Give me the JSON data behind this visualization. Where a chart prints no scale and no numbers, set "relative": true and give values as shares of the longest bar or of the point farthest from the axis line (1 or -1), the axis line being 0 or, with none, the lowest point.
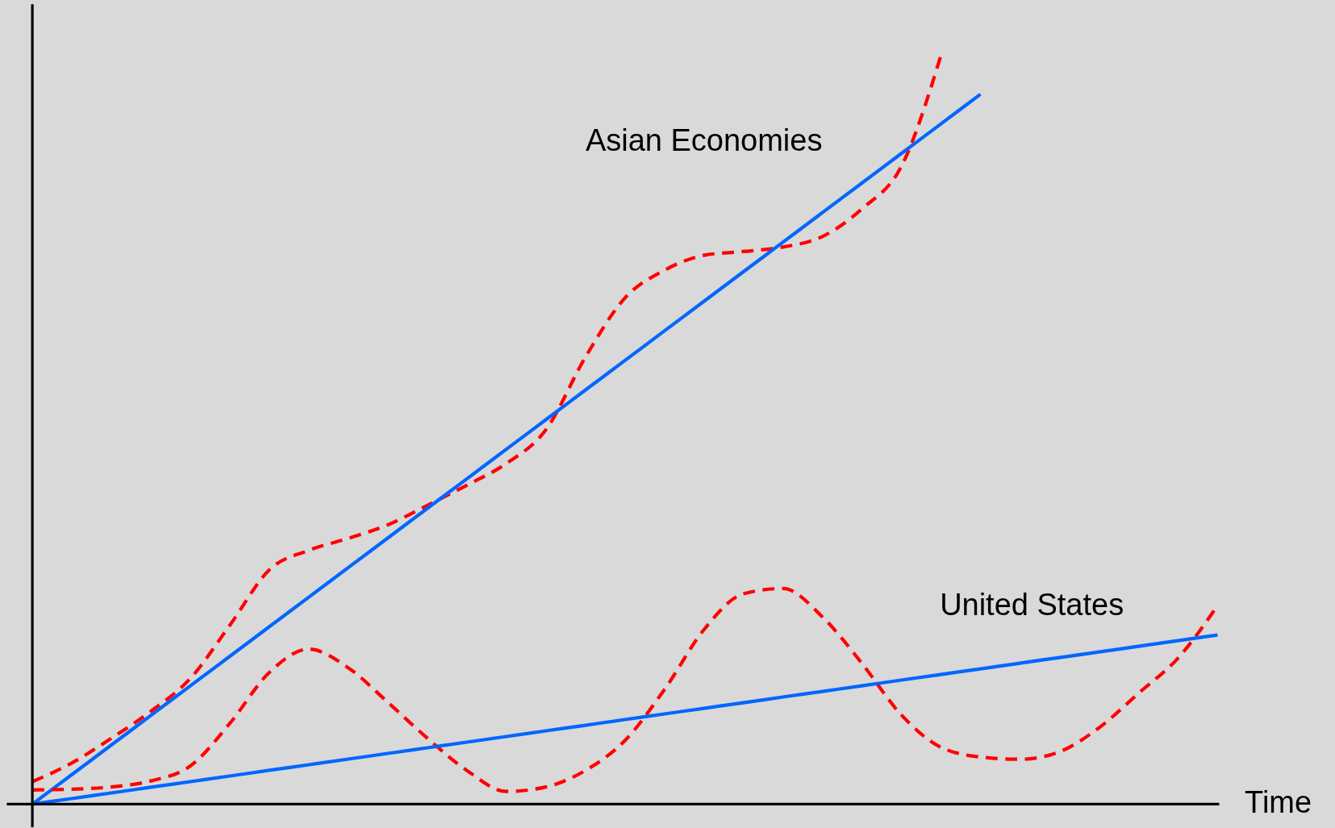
{
  "chart_data": {
    "type": "line",
    "relative": true,
    "xlabel": "Time",
    "marker": "none",
    "categories": [
      null,
      null,
      null,
      null,
      null,
      null,
      null,
      null,
      null,
      null,
      null,
      null,
      null,
      null,
      null,
      null,
      null,
      null,
      null,
      null,
      null,
      null,
      null,
      null,
      null,
      null,
      null,
      null,
      null,
      null,
      null
    ],
    "series": [
      {
        "name": "Asian Economies",
        "color": "#ff0000",
        "line_style": "dashed",
        "values": [
          0.03,
          0.055,
          0.088,
          0.124,
          0.168,
          0.239,
          0.313,
          0.339,
          0.355,
          0.373,
          0.399,
          0.426,
          0.455,
          0.5,
          0.597,
          0.676,
          0.713,
          0.733,
          0.738,
          0.744,
          0.758,
          0.795,
          0.852,
          1.0,
          null,
          null,
          null,
          null,
          null,
          null,
          null
        ]
      },
      {
        "color": "#0066ff",
        "line_style": "solid",
        "values": [
          0,
          0.0395,
          0.079,
          0.1185,
          0.158,
          0.1975,
          0.237,
          0.2765,
          0.316,
          0.3555,
          0.395,
          0.4345,
          0.474,
          0.5135,
          0.553,
          0.5925,
          0.632,
          0.6715,
          0.711,
          0.7505,
          0.79,
          0.8295,
          0.869,
          0.9085,
          0.948,
          null,
          null,
          null,
          null,
          null,
          null
        ]
      },
      {
        "name": "United States",
        "color": "#ff0000",
        "line_style": "dashed",
        "values": [
          0.019,
          0.02,
          0.023,
          0.031,
          0.051,
          0.108,
          0.176,
          0.207,
          0.182,
          0.136,
          0.088,
          0.045,
          0.017,
          0.023,
          0.045,
          0.085,
          0.153,
          0.233,
          0.281,
          0.288,
          0.25,
          0.188,
          0.119,
          0.076,
          0.063,
          0.06,
          0.07,
          0.102,
          0.148,
          0.195,
          0.265
        ]
      },
      {
        "color": "#0066ff",
        "line_style": "solid",
        "values": [
          0,
          0.0075,
          0.015,
          0.0226,
          0.0301,
          0.0376,
          0.0452,
          0.0527,
          0.0602,
          0.0678,
          0.0753,
          0.0828,
          0.0904,
          0.0979,
          0.1054,
          0.113,
          0.1205,
          0.128,
          0.1355,
          0.1431,
          0.1506,
          0.1581,
          0.1657,
          0.1732,
          0.1807,
          0.1883,
          0.1958,
          0.2033,
          0.2108,
          0.2184,
          0.2259
        ]
      }
    ]
  }
}
